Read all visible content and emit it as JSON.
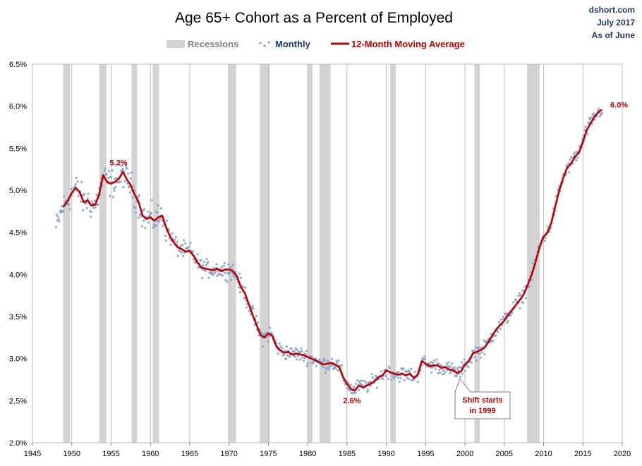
{
  "header": {
    "title": "Age 65+ Cohort as a Percent of Employed",
    "source_lines": [
      "dshort.com",
      "July 2017",
      "As of June"
    ]
  },
  "colors": {
    "recession": "#d3d3d3",
    "monthly": "#7f9fc9",
    "average": "#c00000",
    "grid": "#bfbfbf",
    "legend_text_recession": "#7f7f7f",
    "legend_text_monthly": "#1f3864",
    "legend_text_average": "#c00000"
  },
  "chart_data": {
    "type": "line",
    "title": "Age 65+ Cohort as a Percent of Employed",
    "xlabel": "",
    "ylabel": "",
    "xlim": [
      1945,
      2020
    ],
    "ylim": [
      2.0,
      6.5
    ],
    "x_ticks": [
      1945,
      1950,
      1955,
      1960,
      1965,
      1970,
      1975,
      1980,
      1985,
      1990,
      1995,
      2000,
      2005,
      2010,
      2015,
      2020
    ],
    "y_ticks": [
      2.0,
      2.5,
      3.0,
      3.5,
      4.0,
      4.5,
      5.0,
      5.5,
      6.0,
      6.5
    ],
    "y_tick_labels": [
      "2.0%",
      "2.5%",
      "3.0%",
      "3.5%",
      "4.0%",
      "4.5%",
      "5.0%",
      "5.5%",
      "6.0%",
      "6.5%"
    ],
    "grid": "vertical",
    "legend": {
      "placement": "top",
      "entries": [
        "Recessions",
        "Monthly",
        "12-Month Moving Average"
      ]
    },
    "recessions": [
      [
        1948.9,
        1949.8
      ],
      [
        1953.5,
        1954.4
      ],
      [
        1957.6,
        1958.3
      ],
      [
        1960.3,
        1961.1
      ],
      [
        1969.9,
        1970.9
      ],
      [
        1973.9,
        1975.2
      ],
      [
        1980.0,
        1980.6
      ],
      [
        1981.5,
        1982.9
      ],
      [
        1990.5,
        1991.2
      ],
      [
        2001.2,
        2001.9
      ],
      [
        2007.9,
        2009.5
      ]
    ],
    "series": [
      {
        "name": "12-Month Moving Average",
        "points": [
          [
            1948.9,
            4.8
          ],
          [
            1949.5,
            4.88
          ],
          [
            1950.0,
            4.97
          ],
          [
            1950.5,
            5.03
          ],
          [
            1951.0,
            4.98
          ],
          [
            1951.5,
            4.86
          ],
          [
            1952.0,
            4.88
          ],
          [
            1952.5,
            4.82
          ],
          [
            1953.0,
            4.83
          ],
          [
            1953.5,
            4.96
          ],
          [
            1954.0,
            5.18
          ],
          [
            1954.5,
            5.1
          ],
          [
            1955.0,
            5.08
          ],
          [
            1955.5,
            5.1
          ],
          [
            1956.0,
            5.14
          ],
          [
            1956.5,
            5.22
          ],
          [
            1957.0,
            5.13
          ],
          [
            1957.5,
            5.06
          ],
          [
            1958.0,
            4.95
          ],
          [
            1958.5,
            4.86
          ],
          [
            1959.0,
            4.7
          ],
          [
            1959.5,
            4.66
          ],
          [
            1960.0,
            4.68
          ],
          [
            1960.5,
            4.64
          ],
          [
            1961.0,
            4.68
          ],
          [
            1961.5,
            4.7
          ],
          [
            1962.0,
            4.56
          ],
          [
            1962.5,
            4.45
          ],
          [
            1963.0,
            4.38
          ],
          [
            1963.5,
            4.32
          ],
          [
            1964.0,
            4.3
          ],
          [
            1964.5,
            4.27
          ],
          [
            1965.0,
            4.28
          ],
          [
            1965.5,
            4.22
          ],
          [
            1966.0,
            4.14
          ],
          [
            1966.5,
            4.08
          ],
          [
            1967.0,
            4.07
          ],
          [
            1967.5,
            4.06
          ],
          [
            1968.0,
            4.05
          ],
          [
            1968.5,
            4.07
          ],
          [
            1969.0,
            4.04
          ],
          [
            1969.5,
            4.06
          ],
          [
            1970.0,
            4.06
          ],
          [
            1970.5,
            4.04
          ],
          [
            1971.0,
            3.98
          ],
          [
            1971.5,
            3.85
          ],
          [
            1972.0,
            3.78
          ],
          [
            1972.5,
            3.65
          ],
          [
            1973.0,
            3.52
          ],
          [
            1973.5,
            3.4
          ],
          [
            1974.0,
            3.28
          ],
          [
            1974.5,
            3.25
          ],
          [
            1975.0,
            3.3
          ],
          [
            1975.5,
            3.27
          ],
          [
            1976.0,
            3.15
          ],
          [
            1976.5,
            3.1
          ],
          [
            1977.0,
            3.07
          ],
          [
            1977.5,
            3.08
          ],
          [
            1978.0,
            3.05
          ],
          [
            1978.5,
            3.06
          ],
          [
            1979.0,
            3.05
          ],
          [
            1979.5,
            3.04
          ],
          [
            1980.0,
            3.02
          ],
          [
            1980.5,
            3.0
          ],
          [
            1981.0,
            2.98
          ],
          [
            1981.5,
            2.95
          ],
          [
            1982.0,
            2.93
          ],
          [
            1982.5,
            2.94
          ],
          [
            1983.0,
            2.95
          ],
          [
            1983.5,
            2.93
          ],
          [
            1984.0,
            2.9
          ],
          [
            1984.5,
            2.78
          ],
          [
            1985.0,
            2.7
          ],
          [
            1985.5,
            2.64
          ],
          [
            1986.0,
            2.62
          ],
          [
            1986.5,
            2.68
          ],
          [
            1987.0,
            2.66
          ],
          [
            1987.5,
            2.68
          ],
          [
            1988.0,
            2.7
          ],
          [
            1988.5,
            2.73
          ],
          [
            1989.0,
            2.78
          ],
          [
            1989.5,
            2.8
          ],
          [
            1990.0,
            2.86
          ],
          [
            1990.5,
            2.84
          ],
          [
            1991.0,
            2.82
          ],
          [
            1991.5,
            2.81
          ],
          [
            1992.0,
            2.82
          ],
          [
            1992.5,
            2.8
          ],
          [
            1993.0,
            2.82
          ],
          [
            1993.5,
            2.77
          ],
          [
            1994.0,
            2.81
          ],
          [
            1994.5,
            2.97
          ],
          [
            1995.0,
            2.94
          ],
          [
            1995.5,
            2.91
          ],
          [
            1996.0,
            2.92
          ],
          [
            1996.5,
            2.92
          ],
          [
            1997.0,
            2.89
          ],
          [
            1997.5,
            2.9
          ],
          [
            1998.0,
            2.87
          ],
          [
            1998.5,
            2.86
          ],
          [
            1999.0,
            2.83
          ],
          [
            1999.5,
            2.85
          ],
          [
            2000.0,
            2.93
          ],
          [
            2000.5,
            2.97
          ],
          [
            2001.0,
            3.06
          ],
          [
            2001.5,
            3.08
          ],
          [
            2002.0,
            3.1
          ],
          [
            2002.5,
            3.13
          ],
          [
            2003.0,
            3.2
          ],
          [
            2003.5,
            3.28
          ],
          [
            2004.0,
            3.35
          ],
          [
            2004.5,
            3.4
          ],
          [
            2005.0,
            3.45
          ],
          [
            2005.5,
            3.52
          ],
          [
            2006.0,
            3.58
          ],
          [
            2006.5,
            3.64
          ],
          [
            2007.0,
            3.7
          ],
          [
            2007.5,
            3.77
          ],
          [
            2008.0,
            3.88
          ],
          [
            2008.5,
            4.0
          ],
          [
            2009.0,
            4.16
          ],
          [
            2009.5,
            4.33
          ],
          [
            2010.0,
            4.45
          ],
          [
            2010.5,
            4.5
          ],
          [
            2011.0,
            4.62
          ],
          [
            2011.5,
            4.82
          ],
          [
            2012.0,
            5.0
          ],
          [
            2012.5,
            5.15
          ],
          [
            2013.0,
            5.27
          ],
          [
            2013.5,
            5.32
          ],
          [
            2014.0,
            5.4
          ],
          [
            2014.5,
            5.45
          ],
          [
            2015.0,
            5.58
          ],
          [
            2015.5,
            5.72
          ],
          [
            2016.0,
            5.8
          ],
          [
            2016.5,
            5.88
          ],
          [
            2017.0,
            5.93
          ],
          [
            2017.4,
            5.96
          ]
        ]
      }
    ],
    "annotations": [
      {
        "text": "5.2%",
        "x": 1956.3,
        "y": 5.22
      },
      {
        "text": "2.6%",
        "x": 1985.9,
        "y": 2.62
      },
      {
        "text": "6.0%",
        "x": 2017.4,
        "y": 5.96
      },
      {
        "text": "Shift starts",
        "x": 1999.0,
        "y": 2.83,
        "callout_line": 1
      },
      {
        "text": "in 1999",
        "x": 1999.0,
        "y": 2.83,
        "callout_line": 2
      }
    ]
  }
}
